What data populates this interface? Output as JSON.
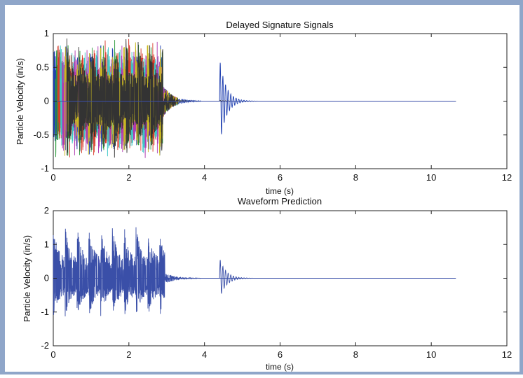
{
  "colors": {
    "frame": "#8fa6c9",
    "figure_bg": "#ffffff",
    "signal": "#3a4fa8",
    "delayed_palette": [
      "#1f3fb0",
      "#2a9a3a",
      "#d83a2a",
      "#3cc7c7",
      "#b03ab0",
      "#c9b820",
      "#333333"
    ]
  },
  "chart_data": [
    {
      "type": "line",
      "title": "Delayed Signature Signals",
      "xlabel": "time (s)",
      "ylabel": "Particle Velocity (in/s)",
      "xlim": [
        0,
        12
      ],
      "ylim": [
        -1,
        1
      ],
      "xticks": [
        0,
        2,
        4,
        6,
        8,
        10,
        12
      ],
      "yticks": [
        -1,
        -0.5,
        0,
        0.5,
        1
      ],
      "xtick_labels": [
        "0",
        "2",
        "4",
        "6",
        "8",
        "10",
        "12"
      ],
      "ytick_labels": [
        "-1",
        "-0.5",
        "0",
        "0.5",
        "1"
      ],
      "grid": false,
      "series_count": 7,
      "series_envelope": {
        "burst_region": {
          "x_start": 0.0,
          "x_end": 2.9,
          "y_max": 0.93,
          "y_min": -0.88
        },
        "decay_region": {
          "x_start": 2.9,
          "x_end": 3.9,
          "y_max": 0.25,
          "y_min": -0.25
        },
        "secondary_event": {
          "x_peak": 4.45,
          "y_max": 0.63,
          "y_min": -0.67
        },
        "flat_until": 10.65
      }
    },
    {
      "type": "line",
      "title": "Waveform Prediction",
      "xlabel": "time (s)",
      "ylabel": "Particle Velocity (in/s)",
      "xlim": [
        0,
        12
      ],
      "ylim": [
        -2,
        2
      ],
      "xticks": [
        0,
        2,
        4,
        6,
        8,
        10,
        12
      ],
      "yticks": [
        -2,
        -1,
        0,
        1,
        2
      ],
      "xtick_labels": [
        "0",
        "2",
        "4",
        "6",
        "8",
        "10",
        "12"
      ],
      "ytick_labels": [
        "-2",
        "-1",
        "0",
        "1",
        "2"
      ],
      "grid": false,
      "series_count": 1,
      "series_envelope": {
        "burst_region": {
          "x_start": 0.0,
          "x_end": 2.95,
          "y_max": 1.55,
          "y_min": -1.2
        },
        "decay_region": {
          "x_start": 2.95,
          "x_end": 3.9,
          "y_max": 0.2,
          "y_min": -0.2
        },
        "secondary_event": {
          "x_peak": 4.45,
          "y_max": 0.6,
          "y_min": -0.62
        },
        "flat_until": 10.65
      }
    }
  ]
}
